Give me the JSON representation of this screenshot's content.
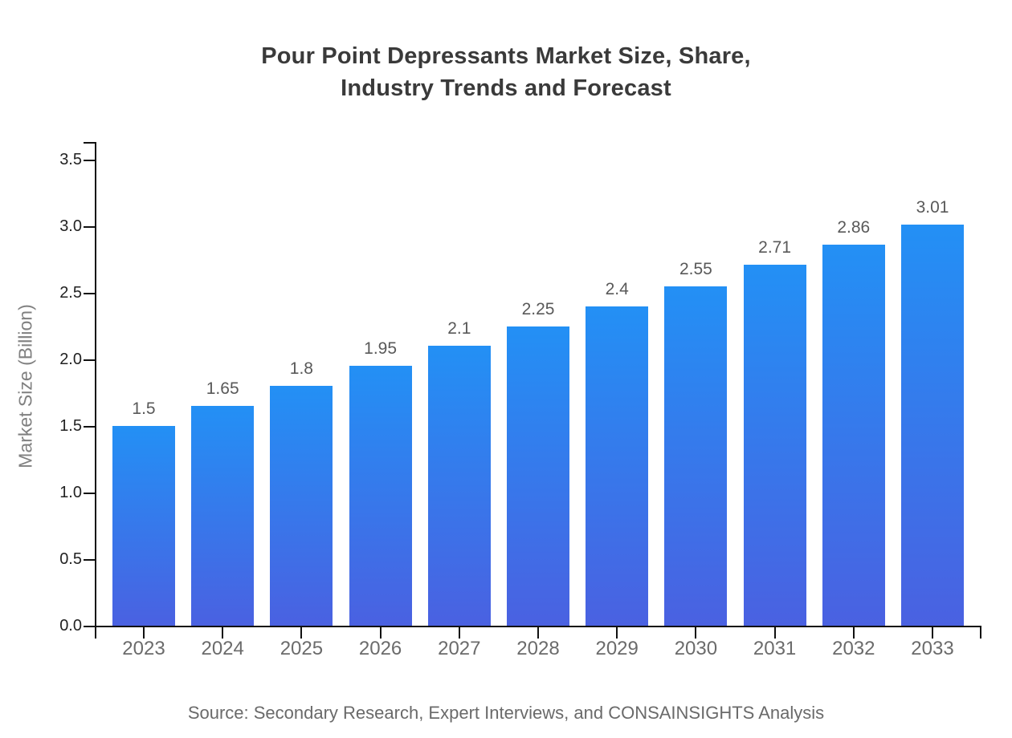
{
  "title": "Pour Point Depressants Market Size, Share,\nIndustry Trends and Forecast",
  "source": "Source: Secondary Research, Expert Interviews, and CONSAINSIGHTS Analysis",
  "chart_data": {
    "type": "bar",
    "title": "Pour Point Depressants Market Size, Share, Industry Trends and Forecast",
    "categories": [
      "2023",
      "2024",
      "2025",
      "2026",
      "2027",
      "2028",
      "2029",
      "2030",
      "2031",
      "2032",
      "2033"
    ],
    "values": [
      1.5,
      1.65,
      1.8,
      1.95,
      2.1,
      2.25,
      2.4,
      2.55,
      2.71,
      2.86,
      3.01
    ],
    "value_labels": [
      "1.5",
      "1.65",
      "1.8",
      "1.95",
      "2.1",
      "2.25",
      "2.4",
      "2.55",
      "2.71",
      "2.86",
      "3.01"
    ],
    "xlabel": "",
    "ylabel": "Market Size (Billion)",
    "ylim": [
      0,
      3.5
    ],
    "ytick_step": 0.5,
    "ytick_labels": [
      "0.0",
      "0.5",
      "1.0",
      "1.5",
      "2.0",
      "2.5",
      "3.0",
      "3.5"
    ],
    "grid": false,
    "legend_position": "none",
    "annotation": "Source: Secondary Research, Expert Interviews, and CONSAINSIGHTS Analysis",
    "colors": {
      "bar_gradient_top": "#2390f5",
      "bar_gradient_bottom": "#4a61e1",
      "axis": "#111111",
      "title_text": "#3a3a3a",
      "y_tick_text": "#222222",
      "x_tick_text": "#6b6b6b",
      "value_label_text": "#595959",
      "y_axis_label_text": "#808080",
      "source_text": "#6a6a6a"
    }
  }
}
